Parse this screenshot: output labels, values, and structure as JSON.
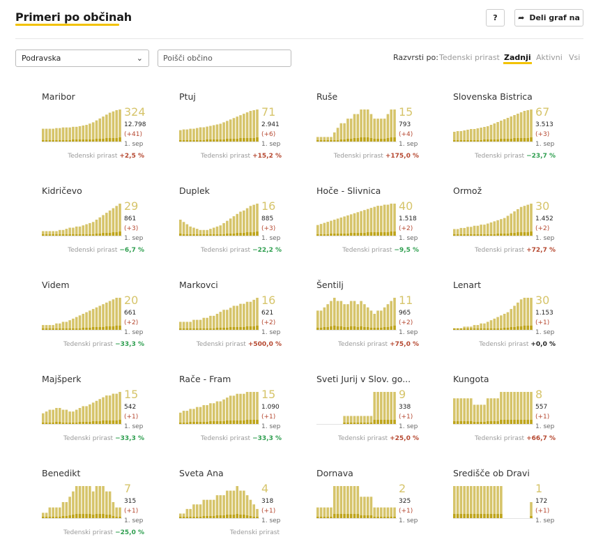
{
  "header": {
    "title": "Primeri po občinah",
    "help_label": "?",
    "share_label": "Deli graf na",
    "share_icon": "share-arrow-icon"
  },
  "filters": {
    "region_value": "Podravska",
    "search_placeholder": "Poišči občino"
  },
  "sort": {
    "label": "Razvrsti po:",
    "options": [
      "Tedenski prirast",
      "Zadnji",
      "Aktivni",
      "Vsi"
    ],
    "selected": "Zadnji"
  },
  "colors": {
    "bar": "#d6c46a",
    "bar_recent": "#b59a00",
    "positive": "#b5472f",
    "negative": "#2e9e4f",
    "accent": "#f2c200"
  },
  "chart_data": [
    {
      "type": "bar",
      "name": "Maribor",
      "last": "324",
      "total": "12.798",
      "delta": "(+41)",
      "date": "1. sep",
      "growth_label": "Tedenski prirast",
      "growth": "+2,5 %",
      "values": [
        20,
        20,
        20,
        20,
        21,
        21,
        22,
        22,
        22,
        23,
        23,
        24,
        25,
        26,
        28,
        30,
        33,
        36,
        39,
        42,
        45,
        47,
        49,
        50
      ]
    },
    {
      "type": "bar",
      "name": "Ptuj",
      "last": "71",
      "total": "2.941",
      "delta": "(+6)",
      "date": "1. sep",
      "growth_label": "Tedenski prirast",
      "growth": "+15,2 %",
      "values": [
        16,
        17,
        17,
        18,
        18,
        19,
        20,
        20,
        21,
        22,
        23,
        24,
        25,
        27,
        29,
        31,
        33,
        35,
        37,
        39,
        41,
        43,
        44,
        45
      ]
    },
    {
      "type": "bar",
      "name": "Ruše",
      "last": "15",
      "total": "793",
      "delta": "(+4)",
      "date": "1. sep",
      "growth_label": "Tedenski prirast",
      "growth": "+175,0 %",
      "values": [
        2,
        2,
        2,
        2,
        2,
        4,
        6,
        8,
        8,
        10,
        10,
        12,
        12,
        14,
        14,
        14,
        12,
        10,
        10,
        10,
        10,
        12,
        14,
        14
      ]
    },
    {
      "type": "bar",
      "name": "Slovenska Bistrica",
      "last": "67",
      "total": "3.513",
      "delta": "(+3)",
      "date": "1. sep",
      "growth_label": "Tedenski prirast",
      "growth": "−23,7 %",
      "values": [
        14,
        15,
        15,
        16,
        17,
        18,
        18,
        19,
        20,
        21,
        22,
        24,
        26,
        28,
        30,
        32,
        34,
        36,
        38,
        40,
        42,
        44,
        45,
        46
      ]
    },
    {
      "type": "bar",
      "name": "Kidričevo",
      "last": "29",
      "total": "861",
      "delta": "(+3)",
      "date": "1. sep",
      "growth_label": "Tedenski prirast",
      "growth": "−6,7 %",
      "values": [
        4,
        4,
        4,
        4,
        4,
        5,
        5,
        6,
        7,
        7,
        8,
        8,
        9,
        10,
        11,
        12,
        14,
        16,
        18,
        20,
        22,
        24,
        26,
        28
      ]
    },
    {
      "type": "bar",
      "name": "Duplek",
      "last": "16",
      "total": "885",
      "delta": "(+3)",
      "date": "1. sep",
      "growth_label": "Tedenski prirast",
      "growth": "−22,2 %",
      "values": [
        14,
        12,
        10,
        8,
        7,
        6,
        5,
        5,
        5,
        6,
        7,
        8,
        9,
        11,
        13,
        15,
        17,
        19,
        21,
        22,
        24,
        26,
        27,
        28
      ]
    },
    {
      "type": "bar",
      "name": "Hoče - Slivnica",
      "last": "40",
      "total": "1.518",
      "delta": "(+2)",
      "date": "1. sep",
      "growth_label": "Tedenski prirast",
      "growth": "−9,5 %",
      "values": [
        10,
        11,
        12,
        13,
        14,
        15,
        16,
        17,
        18,
        19,
        20,
        21,
        22,
        23,
        24,
        25,
        26,
        27,
        28,
        28,
        29,
        29,
        30,
        30
      ]
    },
    {
      "type": "bar",
      "name": "Ormož",
      "last": "30",
      "total": "1.452",
      "delta": "(+2)",
      "date": "1. sep",
      "growth_label": "Tedenski prirast",
      "growth": "+72,7 %",
      "values": [
        6,
        6,
        7,
        7,
        8,
        8,
        9,
        9,
        10,
        10,
        11,
        12,
        13,
        14,
        15,
        16,
        18,
        20,
        22,
        24,
        26,
        27,
        28,
        29
      ]
    },
    {
      "type": "bar",
      "name": "Videm",
      "last": "20",
      "total": "661",
      "delta": "(+2)",
      "date": "1. sep",
      "growth_label": "Tedenski prirast",
      "growth": "−33,3 %",
      "values": [
        3,
        3,
        3,
        3,
        4,
        4,
        5,
        5,
        6,
        7,
        8,
        9,
        10,
        11,
        12,
        13,
        14,
        15,
        16,
        17,
        18,
        19,
        20,
        20
      ]
    },
    {
      "type": "bar",
      "name": "Markovci",
      "last": "16",
      "total": "621",
      "delta": "(+2)",
      "date": "1. sep",
      "growth_label": "Tedenski prirast",
      "growth": "+500,0 %",
      "values": [
        4,
        4,
        4,
        4,
        5,
        5,
        5,
        6,
        6,
        7,
        7,
        8,
        9,
        10,
        10,
        11,
        12,
        12,
        13,
        13,
        14,
        14,
        15,
        16
      ]
    },
    {
      "type": "bar",
      "name": "Šentilj",
      "last": "11",
      "total": "965",
      "delta": "(+2)",
      "date": "1. sep",
      "growth_label": "Tedenski prirast",
      "growth": "+75,0 %",
      "values": [
        6,
        6,
        7,
        8,
        9,
        10,
        9,
        9,
        8,
        8,
        9,
        9,
        8,
        9,
        8,
        7,
        6,
        5,
        6,
        6,
        7,
        8,
        9,
        10
      ]
    },
    {
      "type": "bar",
      "name": "Lenart",
      "last": "30",
      "total": "1.153",
      "delta": "(+1)",
      "date": "1. sep",
      "growth_label": "Tedenski prirast",
      "growth": "+0,0 %",
      "values": [
        1,
        1,
        1,
        2,
        2,
        2,
        3,
        3,
        4,
        4,
        5,
        6,
        7,
        8,
        9,
        10,
        11,
        13,
        15,
        17,
        19,
        20,
        20,
        20
      ]
    },
    {
      "type": "bar",
      "name": "Majšperk",
      "last": "15",
      "total": "542",
      "delta": "(+1)",
      "date": "1. sep",
      "growth_label": "Tedenski prirast",
      "growth": "−33,3 %",
      "values": [
        6,
        7,
        8,
        8,
        9,
        9,
        8,
        8,
        7,
        7,
        8,
        9,
        10,
        10,
        11,
        12,
        13,
        14,
        15,
        16,
        16,
        17,
        17,
        18
      ]
    },
    {
      "type": "bar",
      "name": "Rače - Fram",
      "last": "15",
      "total": "1.090",
      "delta": "(+1)",
      "date": "1. sep",
      "growth_label": "Tedenski prirast",
      "growth": "−33,3 %",
      "values": [
        6,
        7,
        7,
        8,
        8,
        9,
        9,
        10,
        10,
        11,
        11,
        12,
        12,
        13,
        14,
        15,
        15,
        16,
        16,
        16,
        17,
        17,
        17,
        17
      ]
    },
    {
      "type": "bar",
      "name": "Sveti Jurij v Slov. go...",
      "last": "9",
      "total": "338",
      "delta": "(+1)",
      "date": "1. sep",
      "growth_label": "Tedenski prirast",
      "growth": "+25,0 %",
      "values": [
        0,
        0,
        0,
        0,
        0,
        0,
        0,
        0,
        1,
        1,
        1,
        1,
        1,
        1,
        1,
        1,
        1,
        4,
        4,
        4,
        4,
        4,
        4,
        4
      ]
    },
    {
      "type": "bar",
      "name": "Kungota",
      "last": "8",
      "total": "557",
      "delta": "(+1)",
      "date": "1. sep",
      "growth_label": "Tedenski prirast",
      "growth": "+66,7 %",
      "values": [
        4,
        4,
        4,
        4,
        4,
        4,
        3,
        3,
        3,
        3,
        4,
        4,
        4,
        4,
        5,
        5,
        5,
        5,
        5,
        5,
        5,
        5,
        5,
        5
      ]
    },
    {
      "type": "bar",
      "name": "Benedikt",
      "last": "7",
      "total": "315",
      "delta": "(+1)",
      "date": "1. sep",
      "growth_label": "Tedenski prirast",
      "growth": "−25,0 %",
      "values": [
        1,
        1,
        2,
        2,
        2,
        2,
        3,
        3,
        4,
        5,
        6,
        6,
        6,
        6,
        6,
        5,
        6,
        6,
        6,
        5,
        5,
        3,
        2,
        2
      ]
    },
    {
      "type": "bar",
      "name": "Sveta Ana",
      "last": "4",
      "total": "318",
      "delta": "(+1)",
      "date": "1. sep",
      "growth_label": "Tedenski prirast",
      "growth": "",
      "values": [
        1,
        1,
        2,
        2,
        3,
        3,
        3,
        4,
        4,
        4,
        4,
        5,
        5,
        5,
        6,
        6,
        6,
        7,
        6,
        6,
        5,
        4,
        3,
        2
      ]
    },
    {
      "type": "bar",
      "name": "Dornava",
      "last": "2",
      "total": "325",
      "delta": "(+1)",
      "date": "1. sep",
      "growth_label": "",
      "growth": "",
      "values": [
        1,
        1,
        1,
        1,
        1,
        3,
        3,
        3,
        3,
        3,
        3,
        3,
        3,
        2,
        2,
        2,
        2,
        1,
        1,
        1,
        1,
        1,
        1,
        1
      ]
    },
    {
      "type": "bar",
      "name": "Središče ob Dravi",
      "last": "1",
      "total": "172",
      "delta": "(+1)",
      "date": "1. sep",
      "growth_label": "",
      "growth": "",
      "values": [
        2,
        2,
        2,
        2,
        2,
        2,
        2,
        2,
        2,
        2,
        2,
        2,
        2,
        2,
        2,
        0,
        0,
        0,
        0,
        0,
        0,
        0,
        0,
        1
      ]
    }
  ]
}
